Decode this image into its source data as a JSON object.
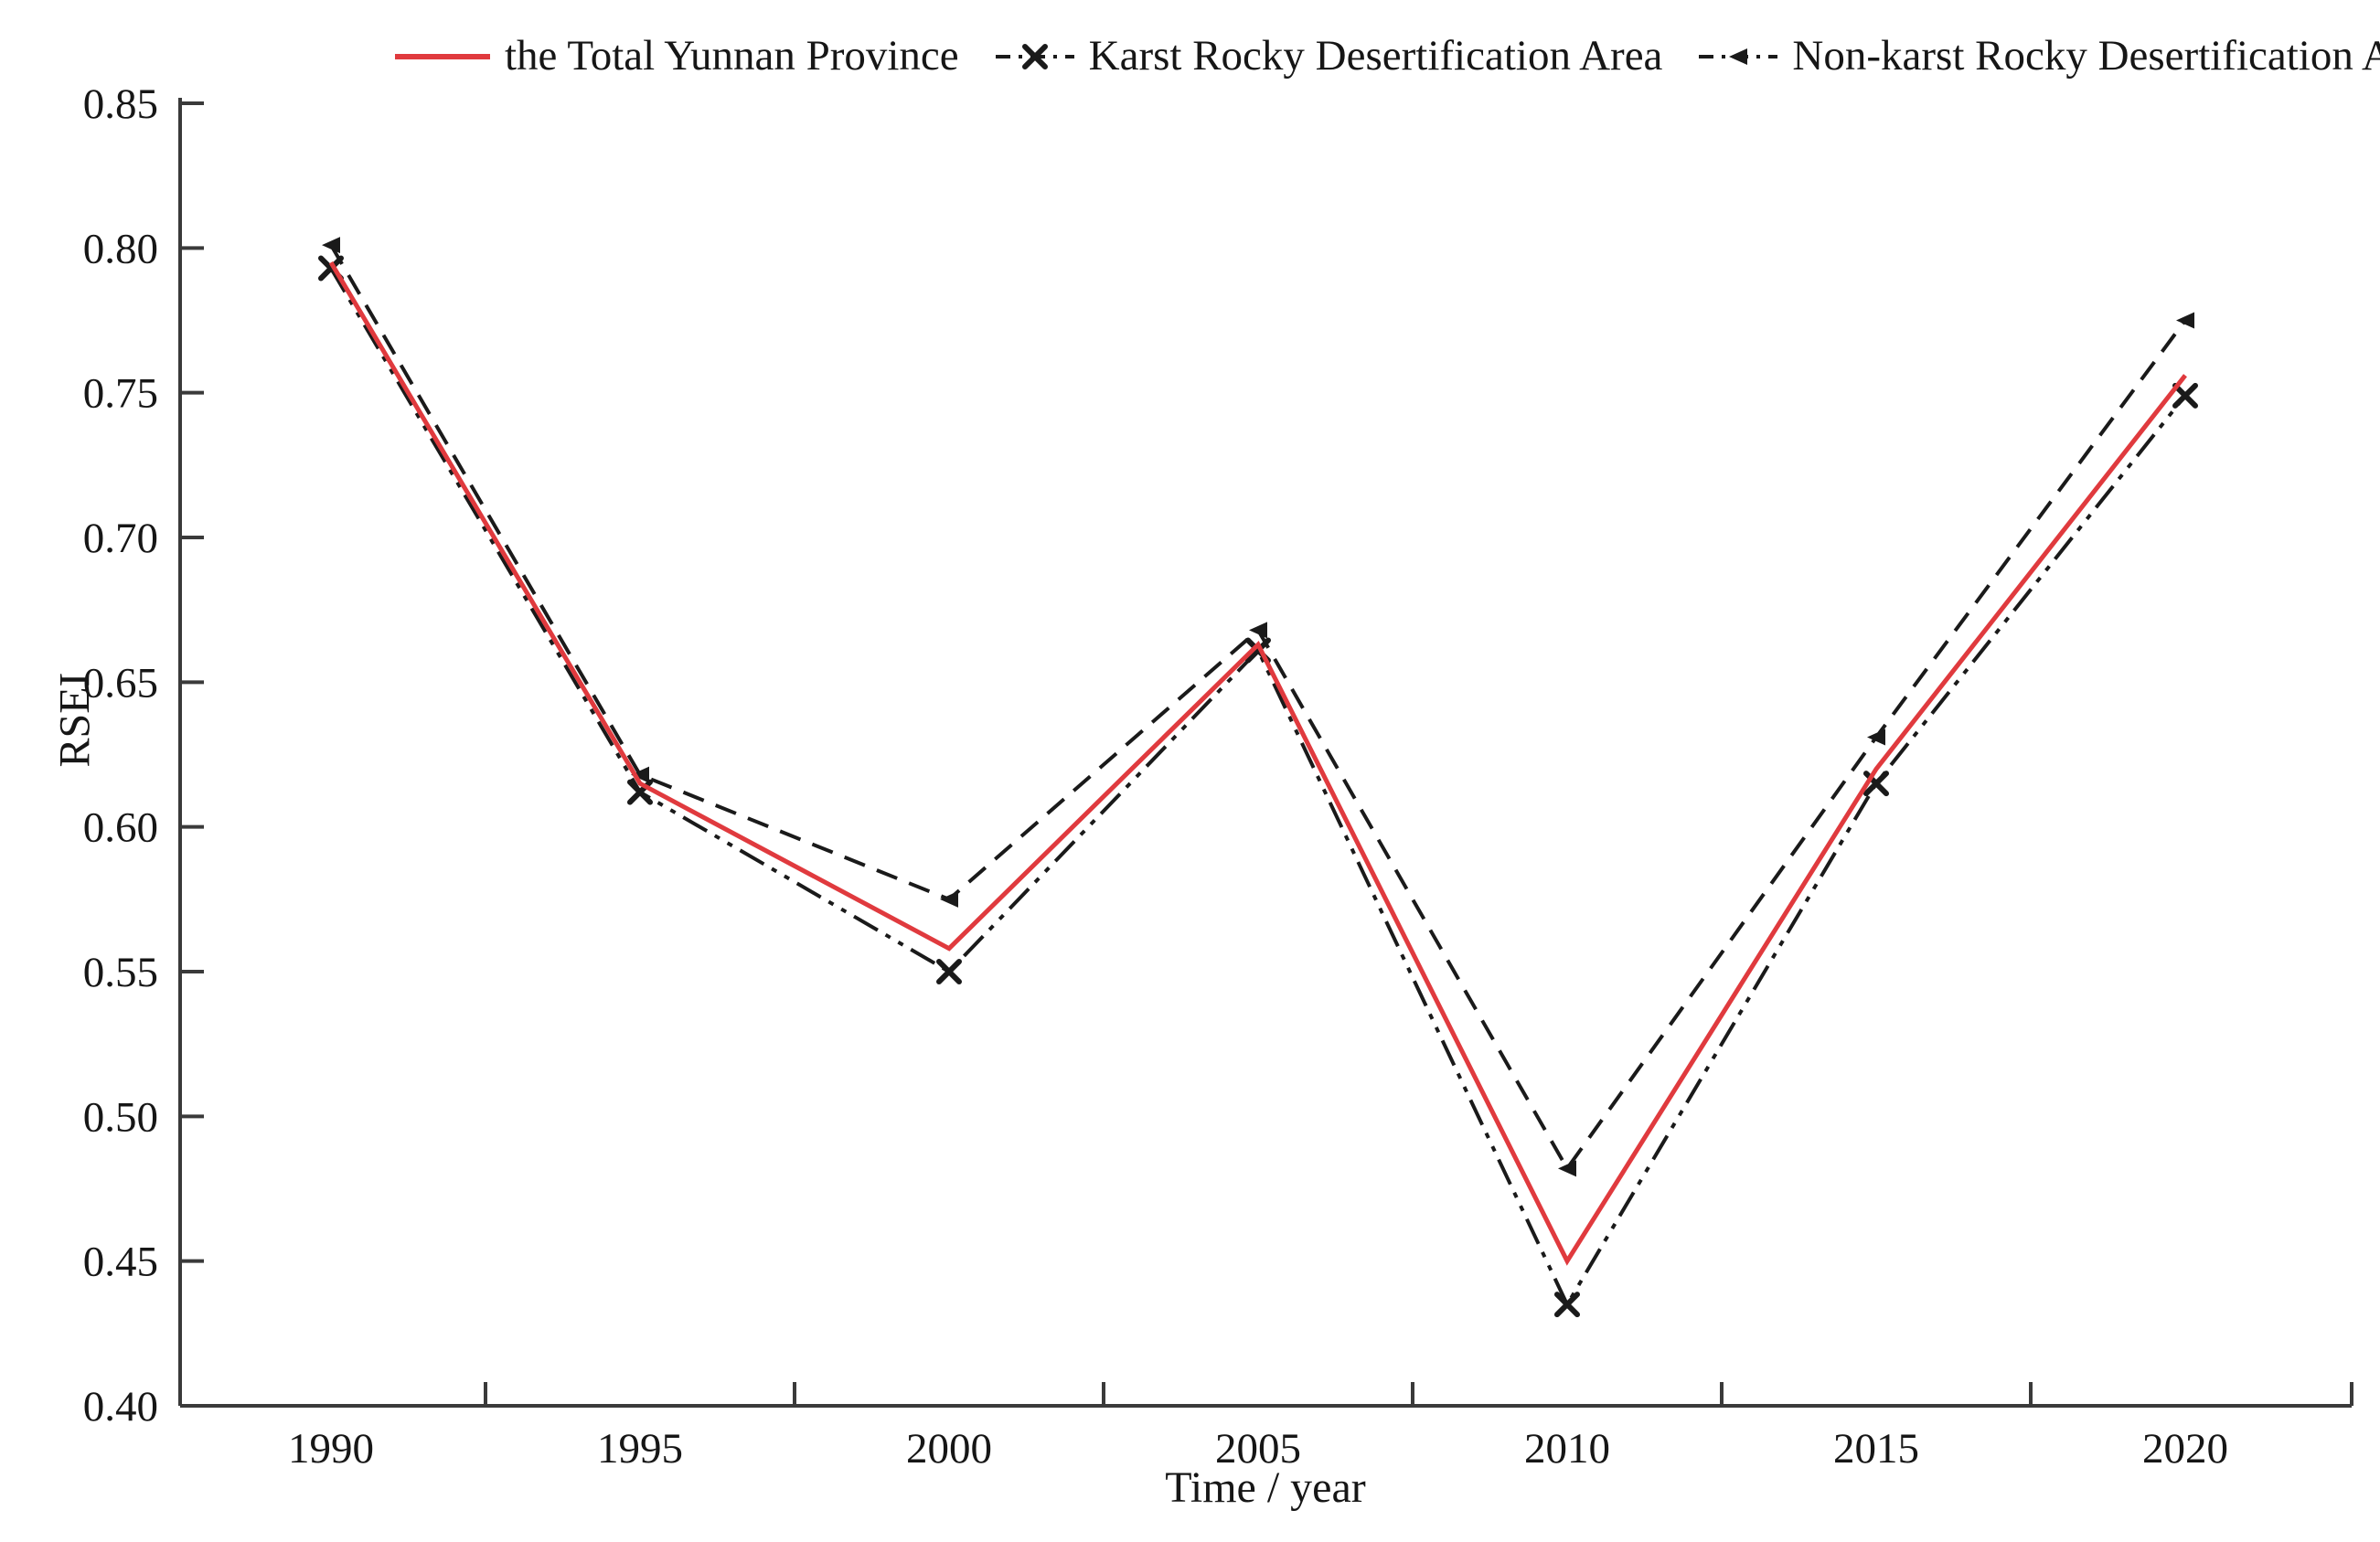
{
  "figure": {
    "legend": [
      {
        "label": "the Total Yunnan Province",
        "series": 0
      },
      {
        "label": "Karst Rocky Desertification Area",
        "series": 1
      },
      {
        "label": "Non-karst Rocky Desertification Area",
        "series": 2
      }
    ]
  },
  "chart_data": {
    "type": "line",
    "title": "",
    "xlabel": "Time / year",
    "ylabel": "RSEI",
    "x": [
      1990,
      1995,
      2000,
      2005,
      2010,
      2015,
      2020
    ],
    "ylim": [
      0.4,
      0.85
    ],
    "ytick_step": 0.05,
    "grid": false,
    "legend_position": "top",
    "axis_color": "#3a3a3a",
    "series": [
      {
        "name": "the Total Yunnan Province",
        "color": "#e03a3e",
        "line": "solid",
        "marker": "none",
        "values": [
          0.795,
          0.615,
          0.558,
          0.663,
          0.45,
          0.62,
          0.756
        ]
      },
      {
        "name": "Karst Rocky Desertification Area",
        "color": "#1a1a1a",
        "line": "dashdotdot",
        "marker": "x",
        "values": [
          0.793,
          0.612,
          0.55,
          0.661,
          0.435,
          0.615,
          0.749
        ]
      },
      {
        "name": "Non-karst Rocky Desertification Area",
        "color": "#1a1a1a",
        "line": "dashed",
        "marker": "left-triangle",
        "values": [
          0.801,
          0.618,
          0.575,
          0.668,
          0.482,
          0.631,
          0.775
        ]
      }
    ]
  }
}
